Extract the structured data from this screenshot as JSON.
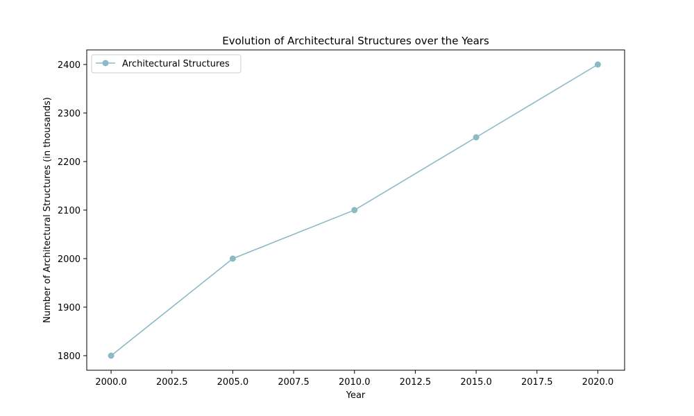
{
  "chart_data": {
    "type": "line",
    "title": "Evolution of Architectural Structures over the Years",
    "xlabel": "Year",
    "ylabel": "Number of Architectural Structures (in thousands)",
    "x": [
      2000,
      2005,
      2010,
      2015,
      2020
    ],
    "series": [
      {
        "name": "Architectural Structures",
        "values": [
          1800,
          2000,
          2100,
          2250,
          2400
        ],
        "color": "#8bbac6"
      }
    ],
    "xlim": [
      1999,
      2021.1
    ],
    "ylim": [
      1770,
      2430
    ],
    "x_ticks": [
      "2000.0",
      "2002.5",
      "2005.0",
      "2007.5",
      "2010.0",
      "2012.5",
      "2015.0",
      "2017.5",
      "2020.0"
    ],
    "x_tick_values": [
      2000,
      2002.5,
      2005,
      2007.5,
      2010,
      2012.5,
      2015,
      2017.5,
      2020
    ],
    "y_ticks": [
      "1800",
      "1900",
      "2000",
      "2100",
      "2200",
      "2300",
      "2400"
    ],
    "y_tick_values": [
      1800,
      1900,
      2000,
      2100,
      2200,
      2300,
      2400
    ],
    "grid": false,
    "legend_position": "top-left"
  }
}
